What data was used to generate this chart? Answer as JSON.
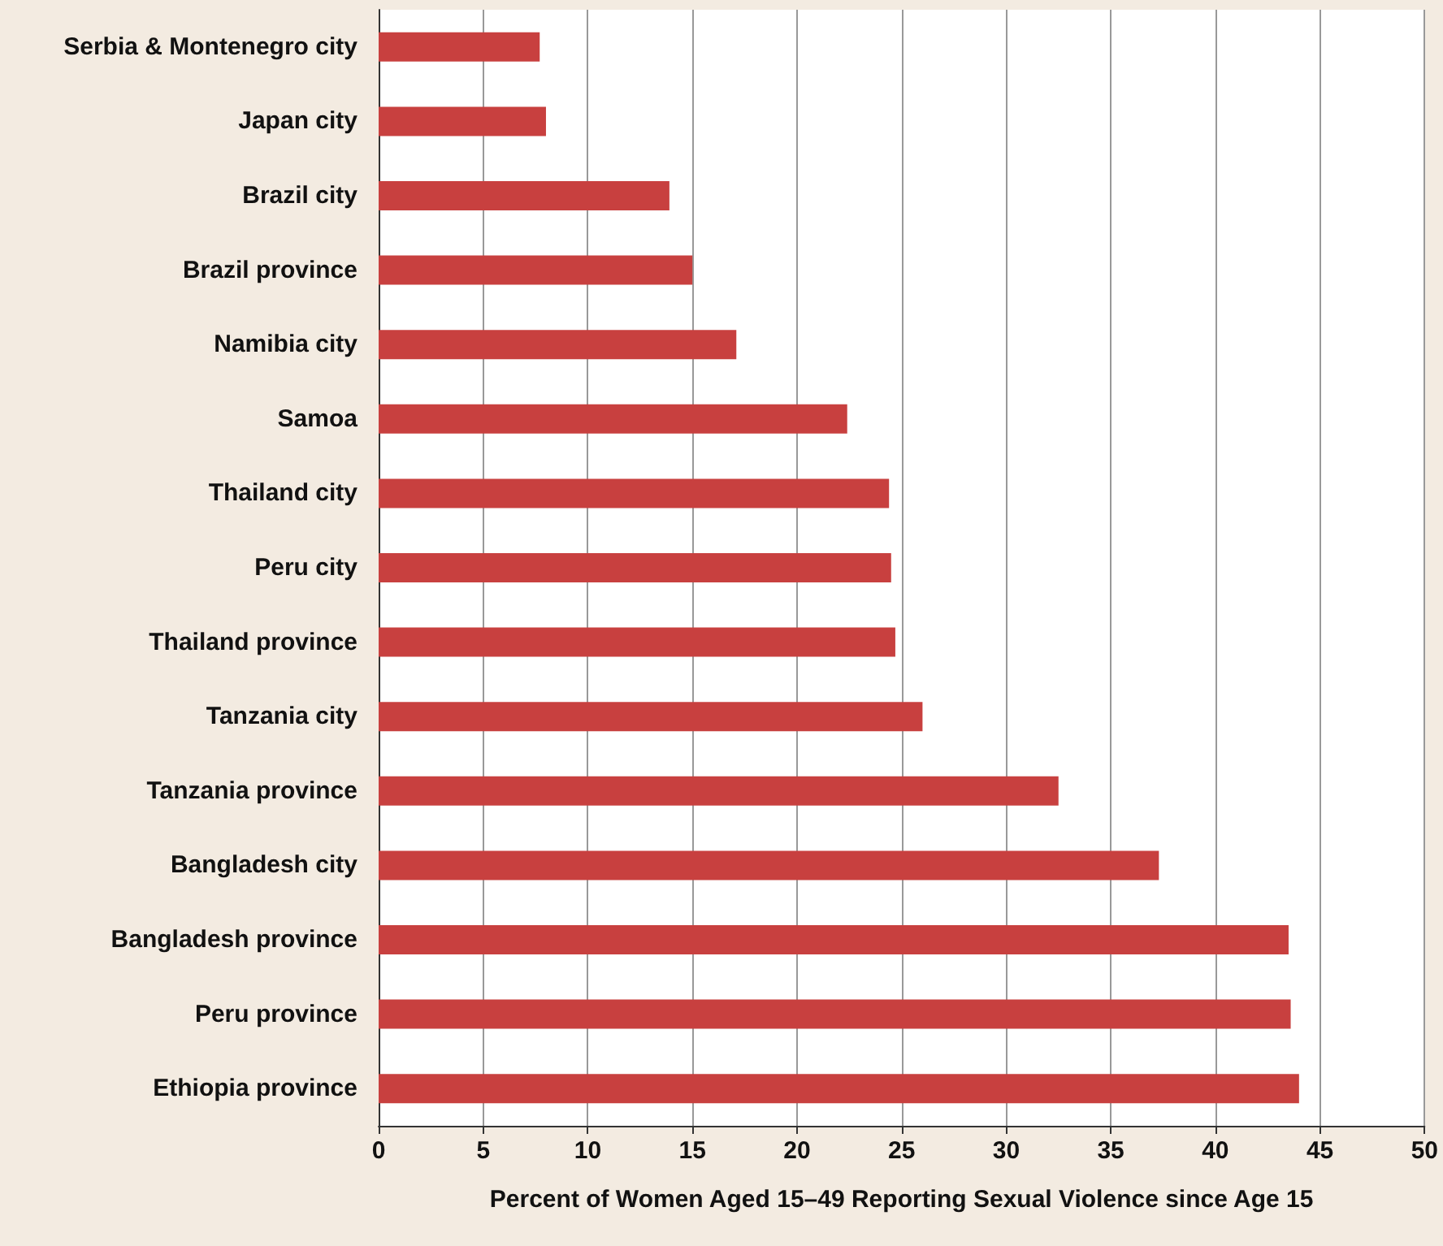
{
  "chart_data": {
    "type": "bar",
    "orientation": "horizontal",
    "xlabel": "Percent of Women Aged 15–49 Reporting Sexual Violence since Age 15",
    "categories": [
      "Serbia & Montenegro city",
      "Japan city",
      "Brazil city",
      "Brazil province",
      "Namibia city",
      "Samoa",
      "Thailand city",
      "Peru city",
      "Thailand province",
      "Tanzania city",
      "Tanzania province",
      "Bangladesh city",
      "Bangladesh province",
      "Peru province",
      "Ethiopia province"
    ],
    "values": [
      7.7,
      8.0,
      13.9,
      15.0,
      17.1,
      22.4,
      24.4,
      24.5,
      24.7,
      26.0,
      32.5,
      37.3,
      43.5,
      43.6,
      44.0
    ],
    "color": "#c8403f",
    "xlim": [
      0,
      50
    ],
    "xticks": [
      0,
      5,
      10,
      15,
      20,
      25,
      30,
      35,
      40,
      45,
      50
    ],
    "grid": "x"
  }
}
